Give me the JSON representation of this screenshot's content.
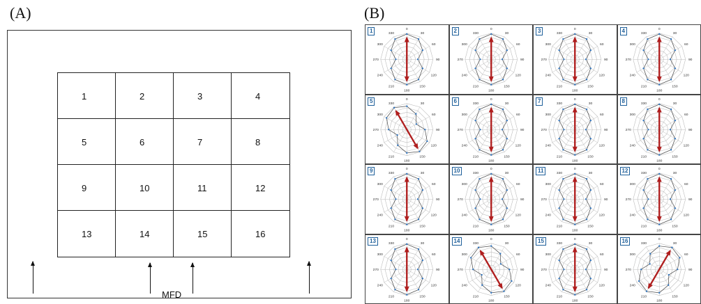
{
  "panel_a": {
    "label": "(A)",
    "cells": [
      "1",
      "2",
      "3",
      "4",
      "5",
      "6",
      "7",
      "8",
      "9",
      "10",
      "11",
      "12",
      "13",
      "14",
      "15",
      "16"
    ],
    "axis_label": "MFD"
  },
  "panel_b": {
    "label": "(B)",
    "angle_labels": [
      "0",
      "30",
      "60",
      "90",
      "120",
      "150",
      "180",
      "210",
      "240",
      "270",
      "300",
      "330"
    ],
    "plots": [
      {
        "id": "1",
        "arrow_angle": 0
      },
      {
        "id": "2",
        "arrow_angle": 0
      },
      {
        "id": "3",
        "arrow_angle": 0
      },
      {
        "id": "4",
        "arrow_angle": 0
      },
      {
        "id": "5",
        "arrow_angle": 150
      },
      {
        "id": "6",
        "arrow_angle": 0
      },
      {
        "id": "7",
        "arrow_angle": 0
      },
      {
        "id": "8",
        "arrow_angle": 0
      },
      {
        "id": "9",
        "arrow_angle": 0
      },
      {
        "id": "10",
        "arrow_angle": 0
      },
      {
        "id": "11",
        "arrow_angle": 0
      },
      {
        "id": "12",
        "arrow_angle": 0
      },
      {
        "id": "13",
        "arrow_angle": 0
      },
      {
        "id": "14",
        "arrow_angle": 150
      },
      {
        "id": "15",
        "arrow_angle": 0
      },
      {
        "id": "16",
        "arrow_angle": 30
      }
    ],
    "colors": {
      "arrow": "#b01e1e",
      "series": "#2c74c2",
      "ring": "#bdbdbd"
    }
  }
}
